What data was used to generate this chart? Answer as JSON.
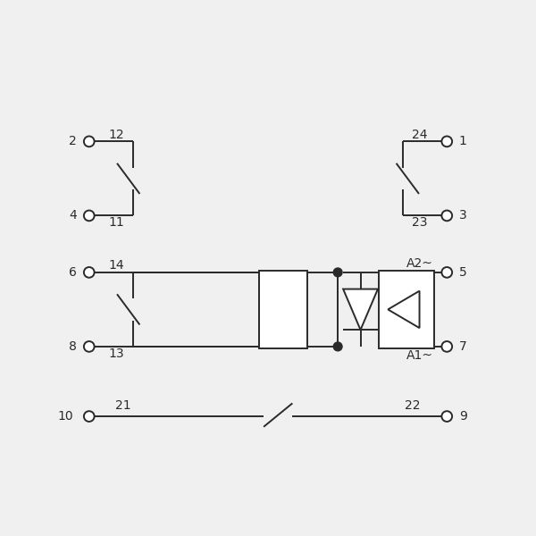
{
  "bg_color": "#f0f0f0",
  "line_color": "#2a2a2a",
  "lw": 1.4,
  "font_size": 10,
  "title": ""
}
